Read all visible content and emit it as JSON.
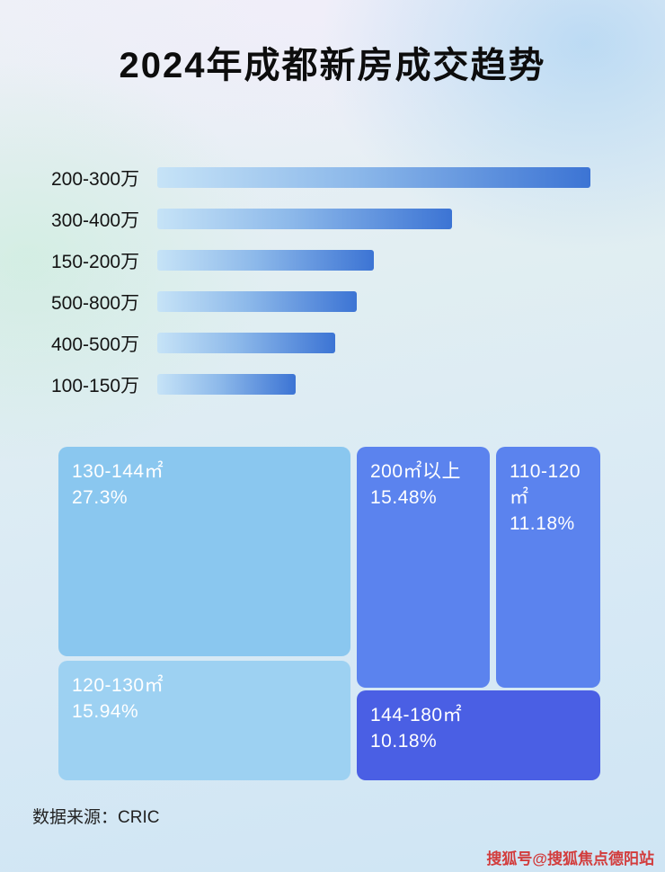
{
  "title": "2024年成都新房成交趋势",
  "source": "数据来源：CRIC",
  "watermark": "搜狐号@搜狐焦点德阳站",
  "colors": {
    "bar_gradient_start": "#c6e3f7",
    "bar_gradient_end": "#3c74d4",
    "block_light_blue": "#8ac7ef",
    "block_lighter_blue": "#9dd1f2",
    "block_cornflower": "#5b83ee",
    "block_indigo": "#4a5fe4",
    "watermark_red": "#d23c3c"
  },
  "chart_data": [
    {
      "type": "bar",
      "orientation": "horizontal",
      "title": "2024年成都新房成交趋势",
      "categories": [
        "200-300万",
        "300-400万",
        "150-200万",
        "500-800万",
        "400-500万",
        "100-150万"
      ],
      "values": [
        100,
        68,
        50,
        46,
        41,
        32
      ],
      "value_scale": "relative length (no numeric axis shown in image)",
      "xlabel": "",
      "ylabel": "",
      "grid": false,
      "legend": false
    },
    {
      "type": "treemap",
      "items": [
        {
          "label": "130-144㎡",
          "value": "27.3%",
          "color": "#8ac7ef"
        },
        {
          "label": "200㎡以上",
          "value": "15.48%",
          "color": "#5b83ee"
        },
        {
          "label": "110-120㎡",
          "value": "11.18%",
          "color": "#5b83ee"
        },
        {
          "label": "120-130㎡",
          "value": "15.94%",
          "color": "#9dd1f2"
        },
        {
          "label": "144-180㎡",
          "value": "10.18%",
          "color": "#4a5fe4"
        }
      ],
      "legend": false
    }
  ]
}
